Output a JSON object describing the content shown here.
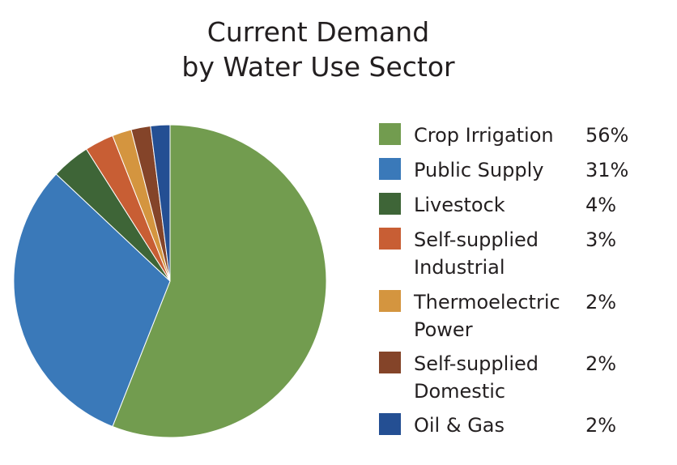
{
  "title": {
    "line1": "Current Demand",
    "line2": "by Water Use Sector"
  },
  "chart_data": {
    "type": "pie",
    "title": "Current Demand by Water Use Sector",
    "start_angle": "12 o'clock, clockwise",
    "legend_position": "right",
    "categories": [
      "Crop Irrigation",
      "Public Supply",
      "Livestock",
      "Self-supplied Industrial",
      "Thermoelectric Power",
      "Self-supplied Domestic",
      "Oil & Gas"
    ],
    "values": [
      56,
      31,
      4,
      3,
      2,
      2,
      2
    ],
    "unit": "%",
    "colors": [
      "#729c4f",
      "#3a79b9",
      "#3e6537",
      "#c85e34",
      "#d4953f",
      "#844429",
      "#244f93"
    ]
  },
  "legend": {
    "items": [
      {
        "line1": "Crop Irrigation",
        "line2": "",
        "pct": "56%",
        "color": "#729c4f"
      },
      {
        "line1": "Public Supply",
        "line2": "",
        "pct": "31%",
        "color": "#3a79b9"
      },
      {
        "line1": "Livestock",
        "line2": "",
        "pct": "4%",
        "color": "#3e6537"
      },
      {
        "line1": "Self-supplied",
        "line2": "Industrial",
        "pct": "3%",
        "color": "#c85e34"
      },
      {
        "line1": "Thermoelectric",
        "line2": "Power",
        "pct": "2%",
        "color": "#d4953f"
      },
      {
        "line1": "Self-supplied",
        "line2": "Domestic",
        "pct": "2%",
        "color": "#844429"
      },
      {
        "line1": "Oil & Gas",
        "line2": "",
        "pct": "2%",
        "color": "#244f93"
      }
    ]
  }
}
